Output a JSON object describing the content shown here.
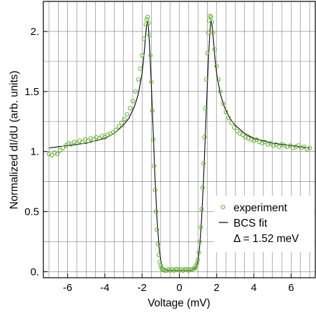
{
  "chart_data": {
    "type": "scatter",
    "xlabel": "Voltage (mV)",
    "ylabel": "Normalized dI/dU (arb. units)",
    "xlim": [
      -7.3,
      7.3
    ],
    "ylim": [
      -0.05,
      2.25
    ],
    "xticks": [
      -6,
      -4,
      -2,
      0,
      2,
      4,
      6
    ],
    "xtick_labels": [
      "-6",
      "-4",
      "-2",
      "0",
      "2",
      "4",
      "6"
    ],
    "yticks": [
      0,
      0.5,
      1,
      1.5,
      2
    ],
    "ytick_labels": [
      "0.",
      "0.5",
      "1.",
      "1.5",
      "2."
    ],
    "grid": true,
    "legend_position": "bottom-right",
    "legend_note": "Δ = 1.52 meV",
    "gap_meV": 1.52,
    "series": [
      {
        "name": "experiment",
        "style": "markers",
        "marker": "open-circle",
        "color": "#6ab43c",
        "x": [
          -7.0,
          -6.85,
          -6.7,
          -6.55,
          -6.4,
          -6.25,
          -6.1,
          -5.95,
          -5.8,
          -5.65,
          -5.5,
          -5.35,
          -5.2,
          -5.05,
          -4.9,
          -4.75,
          -4.6,
          -4.45,
          -4.3,
          -4.15,
          -4.0,
          -3.85,
          -3.7,
          -3.55,
          -3.4,
          -3.25,
          -3.1,
          -2.95,
          -2.8,
          -2.65,
          -2.5,
          -2.35,
          -2.2,
          -2.1,
          -2.0,
          -1.9,
          -1.8,
          -1.75,
          -1.7,
          -1.65,
          -1.6,
          -1.55,
          -1.5,
          -1.45,
          -1.4,
          -1.35,
          -1.3,
          -1.25,
          -1.2,
          -1.15,
          -1.1,
          -1.05,
          -1.0,
          -0.95,
          -0.9,
          -0.85,
          -0.8,
          -0.7,
          -0.6,
          -0.5,
          -0.4,
          -0.3,
          -0.2,
          -0.1,
          0.0,
          0.1,
          0.2,
          0.3,
          0.4,
          0.5,
          0.6,
          0.7,
          0.8,
          0.85,
          0.9,
          0.95,
          1.0,
          1.05,
          1.1,
          1.15,
          1.2,
          1.25,
          1.3,
          1.35,
          1.4,
          1.45,
          1.5,
          1.55,
          1.6,
          1.65,
          1.7,
          1.75,
          1.8,
          1.9,
          2.0,
          2.1,
          2.2,
          2.35,
          2.5,
          2.65,
          2.8,
          2.95,
          3.1,
          3.25,
          3.4,
          3.55,
          3.7,
          3.85,
          4.0,
          4.15,
          4.3,
          4.45,
          4.6,
          4.75,
          4.9,
          5.05,
          5.2,
          5.35,
          5.5,
          5.65,
          5.8,
          5.95,
          6.1,
          6.25,
          6.4,
          6.55,
          6.7,
          6.85,
          7.0
        ],
        "y": [
          0.98,
          0.97,
          0.99,
          0.98,
          1.01,
          1.03,
          1.05,
          1.07,
          1.06,
          1.08,
          1.07,
          1.09,
          1.08,
          1.1,
          1.09,
          1.11,
          1.1,
          1.12,
          1.11,
          1.13,
          1.12,
          1.14,
          1.15,
          1.16,
          1.18,
          1.21,
          1.24,
          1.27,
          1.31,
          1.36,
          1.42,
          1.5,
          1.6,
          1.69,
          1.8,
          1.94,
          2.06,
          2.1,
          2.12,
          2.07,
          1.97,
          1.8,
          1.58,
          1.34,
          1.1,
          0.88,
          0.68,
          0.5,
          0.35,
          0.23,
          0.14,
          0.08,
          0.05,
          0.03,
          0.02,
          0.02,
          0.01,
          0.01,
          0.02,
          0.01,
          0.02,
          0.01,
          0.02,
          0.02,
          0.01,
          0.02,
          0.01,
          0.02,
          0.02,
          0.01,
          0.02,
          0.02,
          0.03,
          0.03,
          0.05,
          0.07,
          0.1,
          0.16,
          0.25,
          0.37,
          0.52,
          0.7,
          0.9,
          1.12,
          1.36,
          1.6,
          1.82,
          1.99,
          2.09,
          2.13,
          2.12,
          2.08,
          1.99,
          1.85,
          1.71,
          1.6,
          1.5,
          1.4,
          1.33,
          1.28,
          1.24,
          1.2,
          1.17,
          1.15,
          1.14,
          1.12,
          1.11,
          1.1,
          1.09,
          1.1,
          1.08,
          1.07,
          1.08,
          1.06,
          1.07,
          1.05,
          1.06,
          1.04,
          1.06,
          1.05,
          1.04,
          1.05,
          1.03,
          1.04,
          1.05,
          1.03,
          1.04,
          1.02,
          1.03
        ]
      },
      {
        "name": "BCS fit",
        "style": "line",
        "color": "#000000",
        "x": [
          -7.0,
          -6.5,
          -6.0,
          -5.5,
          -5.0,
          -4.5,
          -4.0,
          -3.5,
          -3.0,
          -2.7,
          -2.4,
          -2.2,
          -2.0,
          -1.9,
          -1.8,
          -1.75,
          -1.7,
          -1.65,
          -1.6,
          -1.5,
          -1.4,
          -1.3,
          -1.2,
          -1.1,
          -1.0,
          -0.9,
          -0.8,
          -0.6,
          -0.3,
          0.0,
          0.3,
          0.6,
          0.8,
          0.9,
          1.0,
          1.1,
          1.2,
          1.3,
          1.4,
          1.5,
          1.6,
          1.65,
          1.7,
          1.75,
          1.8,
          1.9,
          2.0,
          2.2,
          2.4,
          2.7,
          3.0,
          3.5,
          4.0,
          4.5,
          5.0,
          5.5,
          6.0,
          6.5,
          7.0
        ],
        "y": [
          1.03,
          1.04,
          1.05,
          1.06,
          1.07,
          1.09,
          1.11,
          1.15,
          1.22,
          1.28,
          1.38,
          1.48,
          1.65,
          1.8,
          1.98,
          2.06,
          2.09,
          2.02,
          1.88,
          1.55,
          1.15,
          0.76,
          0.45,
          0.22,
          0.09,
          0.04,
          0.02,
          0.01,
          0.01,
          0.01,
          0.01,
          0.01,
          0.02,
          0.04,
          0.09,
          0.22,
          0.45,
          0.76,
          1.15,
          1.55,
          1.88,
          2.02,
          2.09,
          2.06,
          1.98,
          1.8,
          1.65,
          1.48,
          1.38,
          1.28,
          1.22,
          1.15,
          1.11,
          1.09,
          1.07,
          1.06,
          1.05,
          1.04,
          1.03
        ]
      }
    ]
  }
}
